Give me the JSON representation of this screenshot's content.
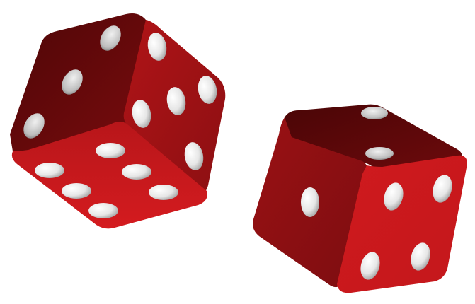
{
  "scene": {
    "description_free": true,
    "background_color": "#ffffff",
    "dice": [
      {
        "id": "die-left",
        "body_color": "#c8181c",
        "top_color": "#9a1114",
        "dark_color": "#5a0808",
        "pip_color": "#f2f2f2",
        "visible_faces": [
          {
            "face": "upper-left",
            "pips": 3
          },
          {
            "face": "upper-right",
            "pips": 6
          },
          {
            "face": "bottom",
            "pips": 6
          }
        ]
      },
      {
        "id": "die-right",
        "body_color": "#c8181c",
        "top_color": "#6a0a0b",
        "dark_color": "#5a0808",
        "pip_color": "#f2f2f2",
        "visible_faces": [
          {
            "face": "top",
            "pips": 2
          },
          {
            "face": "left",
            "pips": 1
          },
          {
            "face": "right",
            "pips": 4
          }
        ]
      }
    ]
  }
}
